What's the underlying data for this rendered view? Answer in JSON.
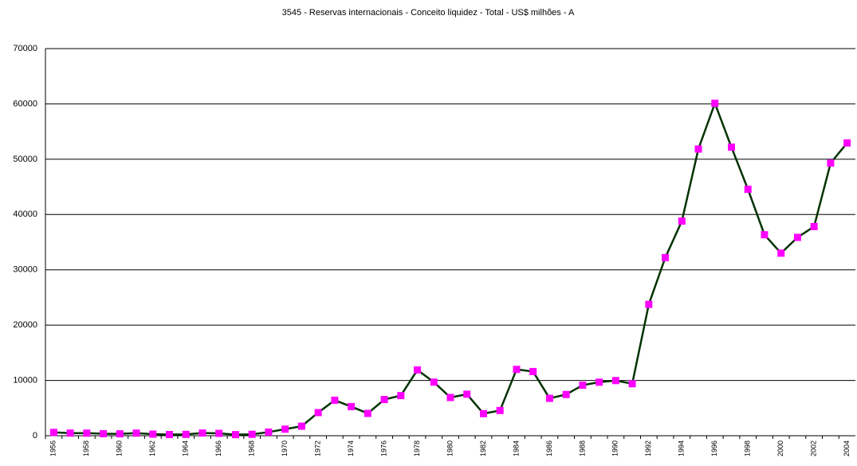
{
  "chart_data": {
    "type": "line",
    "title": "3545 - Reservas internacionais - Conceito liquidez - Total - US$ milhões - A",
    "categories": [
      "1956",
      null,
      "1958",
      null,
      "1960",
      null,
      "1962",
      null,
      "1964",
      null,
      "1966",
      null,
      "1968",
      null,
      "1970",
      null,
      "1972",
      null,
      "1974",
      null,
      "1976",
      null,
      "1978",
      null,
      "1980",
      null,
      "1982",
      null,
      "1984",
      null,
      "1986",
      null,
      "1988",
      null,
      "1990",
      null,
      "1992",
      null,
      "1994",
      null,
      "1996",
      null,
      "1998",
      null,
      "2000",
      null,
      "2002",
      null,
      "2004"
    ],
    "series": [
      {
        "name": "3545",
        "color": "#003300",
        "marker_color": "#ff00ff",
        "values": [
          608,
          474,
          465,
          366,
          345,
          470,
          285,
          219,
          244,
          484,
          425,
          199,
          257,
          656,
          1187,
          1723,
          4183,
          6416,
          5269,
          4040,
          6544,
          7256,
          11895,
          9689,
          6913,
          7507,
          3994,
          4563,
          11995,
          11608,
          6760,
          7458,
          9140,
          9679,
          9973,
          9406,
          23754,
          32211,
          38806,
          51840,
          60110,
          52173,
          44556,
          36342,
          33011,
          35866,
          37823,
          49296,
          52935
        ]
      }
    ],
    "ylim": [
      0,
      70000
    ],
    "yticks": [
      0,
      10000,
      20000,
      30000,
      40000,
      50000,
      60000,
      70000
    ],
    "grid": true
  }
}
